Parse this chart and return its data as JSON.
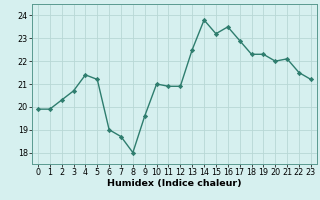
{
  "x": [
    0,
    1,
    2,
    3,
    4,
    5,
    6,
    7,
    8,
    9,
    10,
    11,
    12,
    13,
    14,
    15,
    16,
    17,
    18,
    19,
    20,
    21,
    22,
    23
  ],
  "y": [
    19.9,
    19.9,
    20.3,
    20.7,
    21.4,
    21.2,
    19.0,
    18.7,
    18.0,
    19.6,
    21.0,
    20.9,
    20.9,
    22.5,
    23.8,
    23.2,
    23.5,
    22.9,
    22.3,
    22.3,
    22.0,
    22.1,
    21.5,
    21.2
  ],
  "line_color": "#2e7d6e",
  "marker": "D",
  "marker_size": 2.2,
  "bg_color": "#d6f0ef",
  "grid_color": "#b8d8d5",
  "xlabel": "Humidex (Indice chaleur)",
  "xlim": [
    -0.5,
    23.5
  ],
  "ylim": [
    17.5,
    24.5
  ],
  "yticks": [
    18,
    19,
    20,
    21,
    22,
    23,
    24
  ],
  "xticks": [
    0,
    1,
    2,
    3,
    4,
    5,
    6,
    7,
    8,
    9,
    10,
    11,
    12,
    13,
    14,
    15,
    16,
    17,
    18,
    19,
    20,
    21,
    22,
    23
  ],
  "xlabel_fontsize": 6.8,
  "tick_fontsize": 5.8,
  "line_width": 1.0
}
